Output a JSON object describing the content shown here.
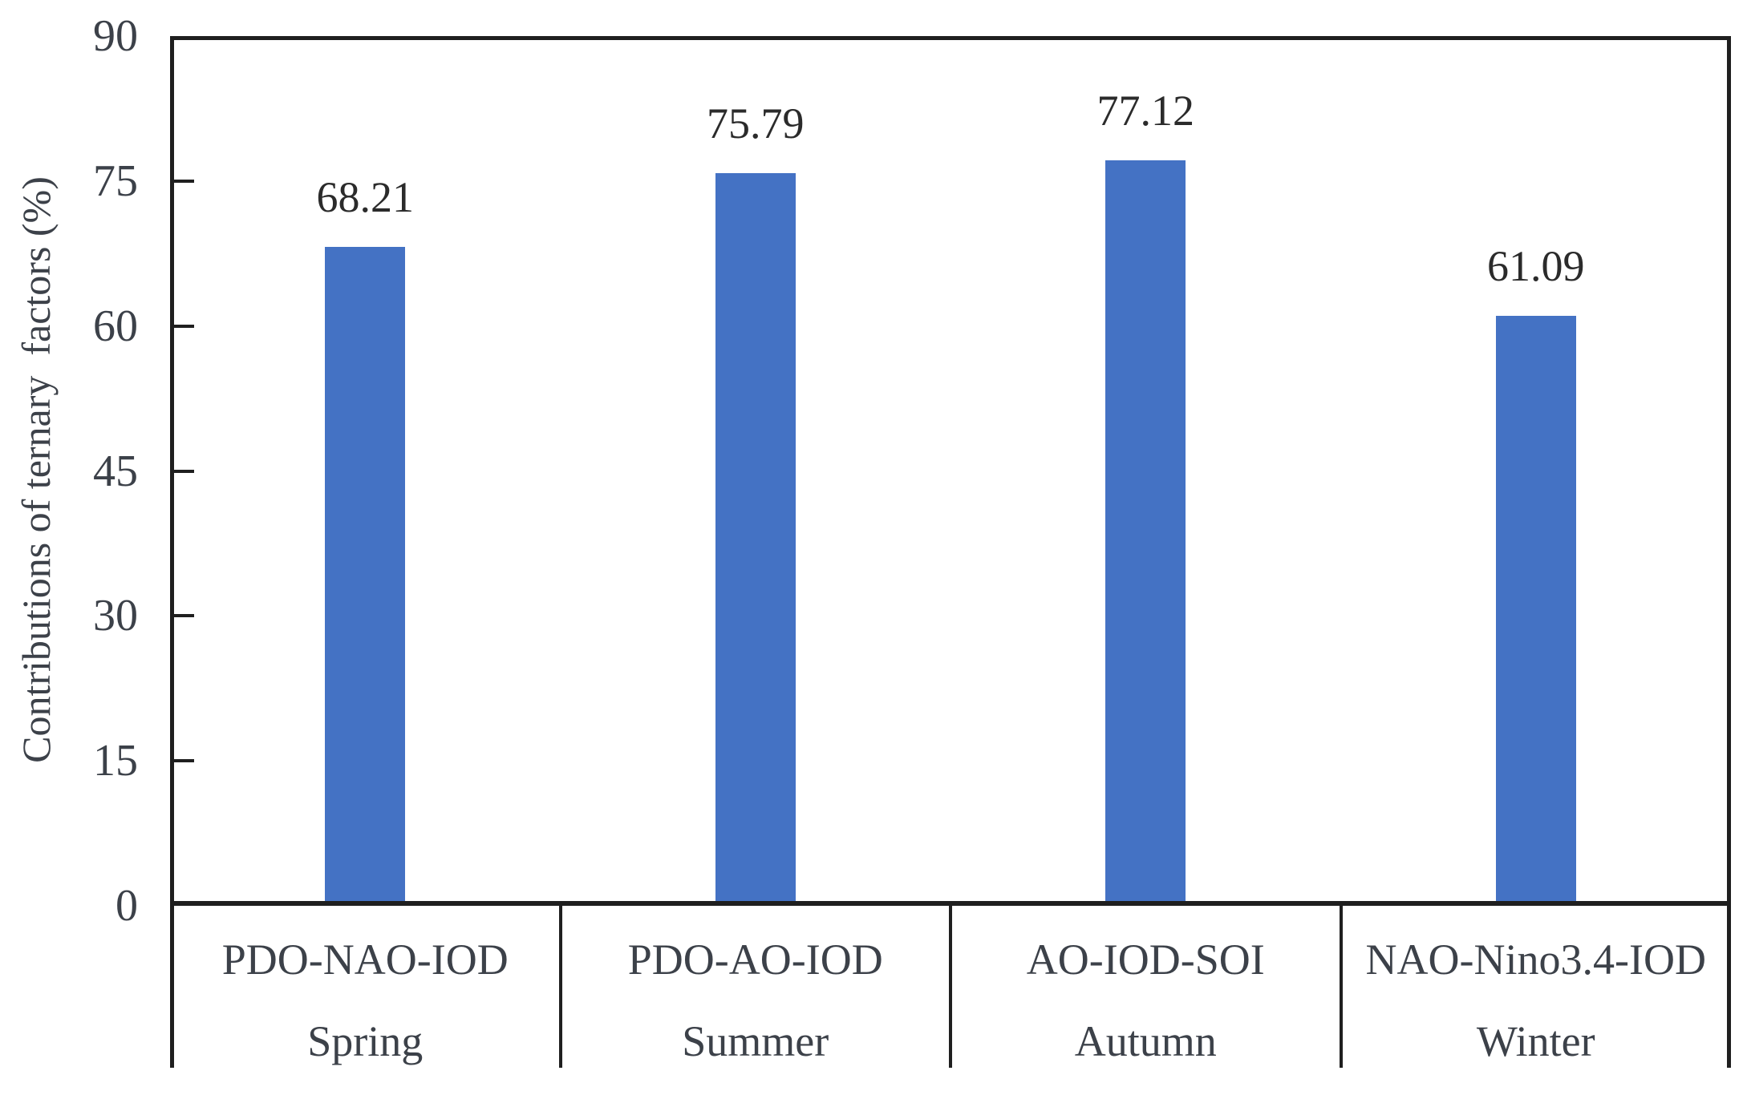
{
  "chart_data": {
    "type": "bar",
    "title": "",
    "xlabel": "",
    "ylabel": "Contributions of ternary  factors (%)",
    "categories": [
      "PDO-NAO-IOD",
      "PDO-AO-IOD",
      "AO-IOD-SOI",
      "NAO-Nino3.4-IOD"
    ],
    "subcategories": [
      "Spring",
      "Summer",
      "Autumn",
      "Winter"
    ],
    "values": [
      68.21,
      75.79,
      77.12,
      61.09
    ],
    "data_labels": [
      "68.21",
      "75.79",
      "77.12",
      "61.09"
    ],
    "ylim": [
      0,
      90
    ],
    "yticks": [
      0,
      15,
      30,
      45,
      60,
      75,
      90
    ],
    "ytick_labels": [
      "0",
      "15",
      "30",
      "45",
      "60",
      "75",
      "90"
    ],
    "grid": false,
    "legend": false,
    "bar_color": "#4472C4",
    "axis_color": "#1f1f1f",
    "tick_text_color": "#3c4149",
    "value_text_color": "#2b2b2b"
  }
}
